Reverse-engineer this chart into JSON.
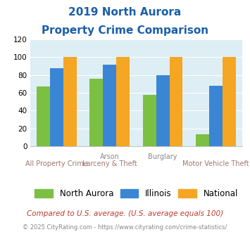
{
  "title_line1": "2019 North Aurora",
  "title_line2": "Property Crime Comparison",
  "n_groups": 4,
  "north_aurora": [
    67,
    76,
    58,
    13
  ],
  "illinois": [
    88,
    92,
    80,
    68
  ],
  "national": [
    100,
    100,
    100,
    100
  ],
  "bar_colors": {
    "north_aurora": "#7bc043",
    "illinois": "#3a86d4",
    "national": "#f5a623"
  },
  "ylim": [
    0,
    120
  ],
  "yticks": [
    0,
    20,
    40,
    60,
    80,
    100,
    120
  ],
  "legend_labels": [
    "North Aurora",
    "Illinois",
    "National"
  ],
  "top_labels": [
    {
      "text": "Arson",
      "x": 1.0
    },
    {
      "text": "Burglary",
      "x": 2.0
    }
  ],
  "bottom_labels": [
    {
      "text": "All Property Crime",
      "x": 0.0
    },
    {
      "text": "Larceny & Theft",
      "x": 1.0
    },
    {
      "text": "Motor Vehicle Theft",
      "x": 3.0
    }
  ],
  "footnote1": "Compared to U.S. average. (U.S. average equals 100)",
  "footnote2": "© 2025 CityRating.com - https://www.cityrating.com/crime-statistics/",
  "title_color": "#1a5fa8",
  "footnote1_color": "#c0392b",
  "footnote2_color": "#888888",
  "plot_bg": "#ddeef5"
}
